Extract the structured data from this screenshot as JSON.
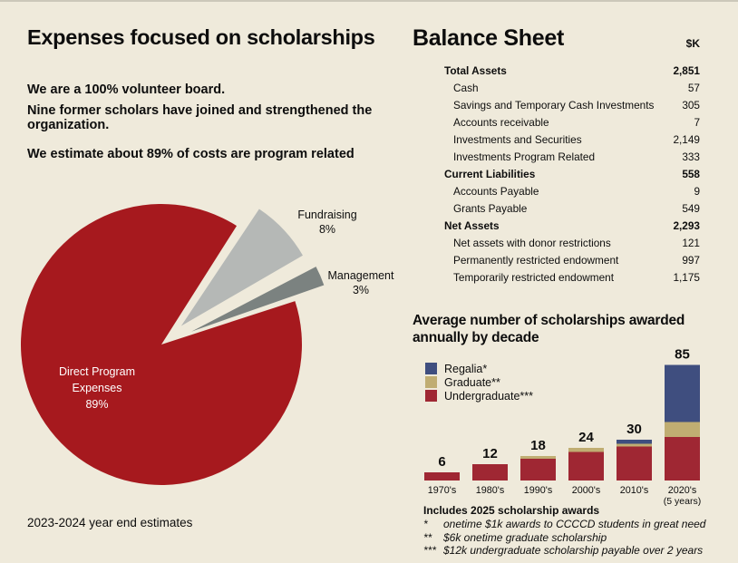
{
  "left": {
    "title": "Expenses focused on scholarships",
    "paragraphs": [
      "We are a 100% volunteer board.",
      "Nine former scholars have joined and strengthened the organization.",
      "We estimate about 89% of costs are program related"
    ],
    "footer": "2023-2024 year end estimates"
  },
  "balance_sheet": {
    "title": "Balance Sheet",
    "unit": "$K",
    "rows": [
      {
        "label": "Total Assets",
        "value": "2,851",
        "bold": true
      },
      {
        "label": "Cash",
        "value": "57",
        "bold": false
      },
      {
        "label": "Savings and Temporary Cash Investments",
        "value": "305",
        "bold": false
      },
      {
        "label": "Accounts receivable",
        "value": "7",
        "bold": false
      },
      {
        "label": "Investments and Securities",
        "value": "2,149",
        "bold": false
      },
      {
        "label": "Investments Program Related",
        "value": "333",
        "bold": false
      },
      {
        "label": "Current Liabilities",
        "value": "558",
        "bold": true
      },
      {
        "label": "Accounts Payable",
        "value": "9",
        "bold": false
      },
      {
        "label": "Grants Payable",
        "value": "549",
        "bold": false
      },
      {
        "label": "Net Assets",
        "value": "2,293",
        "bold": true
      },
      {
        "label": "Net assets with donor restrictions",
        "value": "121",
        "bold": false
      },
      {
        "label": "Permanently restricted endowment",
        "value": "997",
        "bold": false
      },
      {
        "label": "Temporarily restricted endowment",
        "value": "1,175",
        "bold": false
      }
    ]
  },
  "chart_data": [
    {
      "type": "pie",
      "title": "Expenses focused on scholarships",
      "unit": "percent of expenses",
      "footer": "2023-2024 year end estimates",
      "slices": [
        {
          "label": "Direct Program Expenses",
          "value": 89,
          "color": "#a6191e",
          "text_color": "#ffffff",
          "exploded": false
        },
        {
          "label": "Fundraising",
          "value": 8,
          "color": "#b5b8b6",
          "text_color": "#0d0d0d",
          "exploded": true
        },
        {
          "label": "Management",
          "value": 3,
          "color": "#7b8280",
          "text_color": "#0d0d0d",
          "exploded": true
        }
      ]
    },
    {
      "type": "stacked-bar",
      "title": "Average number of scholarships awarded annually by decade",
      "categories": [
        "1970's",
        "1980's",
        "1990's",
        "2000's",
        "2010's",
        "2020's"
      ],
      "category_sublabels": [
        "",
        "",
        "",
        "",
        "",
        "(5 years)"
      ],
      "totals": [
        6,
        12,
        18,
        24,
        30,
        85
      ],
      "series": [
        {
          "name": "Undergraduate***",
          "color": "#9f2733",
          "values": [
            6,
            12,
            16,
            21,
            25,
            32
          ]
        },
        {
          "name": "Graduate**",
          "color": "#c0ad72",
          "values": [
            0,
            0,
            2,
            3,
            2,
            11
          ]
        },
        {
          "name": "Regalia*",
          "color": "#3f4e7f",
          "values": [
            0,
            0,
            0,
            0,
            3,
            42
          ]
        }
      ],
      "legend": [
        {
          "label": "Regalia*",
          "color": "#3f4e7f"
        },
        {
          "label": "Graduate**",
          "color": "#c0ad72"
        },
        {
          "label": "Undergraduate***",
          "color": "#9f2733"
        }
      ],
      "ylim": [
        0,
        90
      ],
      "grid": false,
      "legend_position": "upper-left",
      "footnotes": {
        "heading": "Includes 2025 scholarship awards",
        "items": [
          {
            "marker": "*",
            "text": "onetime $1k awards to CCCCD students in great need"
          },
          {
            "marker": "**",
            "text": "$6k onetime graduate scholarship"
          },
          {
            "marker": "***",
            "text": "$12k undergraduate scholarship payable over 2 years"
          }
        ]
      }
    }
  ]
}
